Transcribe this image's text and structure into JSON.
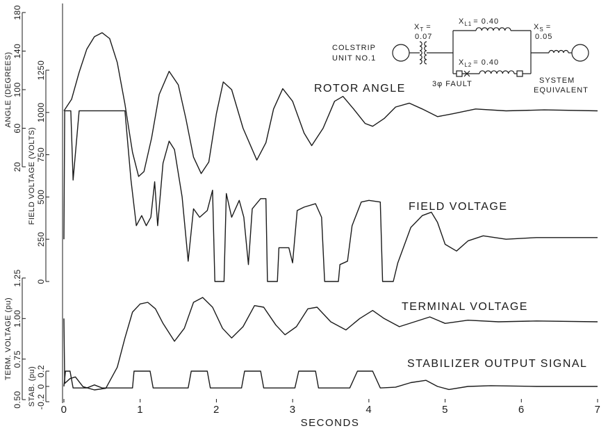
{
  "chart_data": [
    {
      "type": "line",
      "annotation": "ROTOR ANGLE",
      "ylabel": "ANGLE (DEGREES)",
      "color": "#1a1a1a",
      "ylim": [
        20,
        180
      ],
      "yticks": [
        20,
        60,
        100,
        140,
        180
      ],
      "x": [
        0,
        0.1,
        0.2,
        0.3,
        0.4,
        0.5,
        0.6,
        0.7,
        0.8,
        0.9,
        0.98,
        1.05,
        1.15,
        1.25,
        1.38,
        1.5,
        1.6,
        1.7,
        1.8,
        1.9,
        2.0,
        2.09,
        2.2,
        2.35,
        2.53,
        2.65,
        2.75,
        2.87,
        3.0,
        3.15,
        3.25,
        3.4,
        3.55,
        3.66,
        3.8,
        3.95,
        4.05,
        4.2,
        4.35,
        4.53,
        4.7,
        4.9,
        5.1,
        5.4,
        5.8,
        6.3,
        7
      ],
      "values": [
        78,
        90,
        118,
        142,
        155,
        159,
        153,
        128,
        85,
        35,
        10,
        15,
        50,
        95,
        119,
        105,
        70,
        30,
        13,
        25,
        75,
        108,
        100,
        60,
        27,
        45,
        80,
        101,
        88,
        55,
        42,
        60,
        88,
        93,
        80,
        65,
        62,
        70,
        82,
        86,
        80,
        72,
        75,
        80,
        78,
        79,
        78
      ]
    },
    {
      "type": "line",
      "annotation": "FIELD VOLTAGE",
      "ylabel": "FIELD VOLTAGE (VOLTS)",
      "color": "#1a1a1a",
      "ylim": [
        0,
        1250
      ],
      "yticks": [
        0,
        250,
        500,
        750,
        1000,
        1250
      ],
      "x": [
        0,
        0.01,
        0.09,
        0.12,
        0.2,
        0.8,
        0.88,
        0.95,
        1.02,
        1.08,
        1.14,
        1.19,
        1.23,
        1.3,
        1.38,
        1.45,
        1.55,
        1.63,
        1.7,
        1.78,
        1.88,
        1.95,
        1.98,
        2.1,
        2.13,
        2.2,
        2.3,
        2.36,
        2.42,
        2.47,
        2.58,
        2.65,
        2.67,
        2.8,
        2.82,
        2.95,
        3.0,
        3.06,
        3.15,
        3.3,
        3.38,
        3.42,
        3.6,
        3.62,
        3.72,
        3.78,
        3.9,
        4.0,
        4.15,
        4.18,
        4.32,
        4.38,
        4.55,
        4.7,
        4.82,
        4.9,
        5.0,
        5.15,
        5.3,
        5.5,
        5.8,
        6.2,
        7
      ],
      "values": [
        250,
        1010,
        1010,
        600,
        1010,
        1010,
        600,
        330,
        390,
        330,
        380,
        590,
        330,
        700,
        830,
        780,
        500,
        120,
        430,
        380,
        420,
        540,
        0,
        0,
        520,
        380,
        480,
        380,
        100,
        430,
        490,
        490,
        0,
        0,
        200,
        200,
        110,
        420,
        440,
        460,
        380,
        0,
        0,
        100,
        120,
        330,
        470,
        480,
        470,
        0,
        0,
        110,
        320,
        390,
        410,
        350,
        220,
        180,
        240,
        270,
        250,
        260,
        260
      ]
    },
    {
      "type": "line",
      "annotation": "TERMINAL VOLTAGE",
      "ylabel": "TERM. VOLTAGE (pu)",
      "color": "#1a1a1a",
      "ylim": [
        0.5,
        1.25
      ],
      "yticks": [
        {
          "value": 0.5,
          "label": "0.50"
        },
        0.75,
        {
          "value": 1,
          "label": "1.00"
        },
        1.25
      ],
      "x": [
        0,
        0.01,
        0.08,
        0.15,
        0.25,
        0.4,
        0.55,
        0.7,
        0.8,
        0.9,
        1.0,
        1.1,
        1.2,
        1.3,
        1.45,
        1.58,
        1.7,
        1.82,
        1.95,
        2.08,
        2.2,
        2.35,
        2.5,
        2.62,
        2.78,
        2.9,
        3.05,
        3.2,
        3.32,
        3.5,
        3.7,
        3.88,
        4.05,
        4.2,
        4.4,
        4.6,
        4.8,
        5.0,
        5.3,
        5.7,
        6.2,
        7
      ],
      "values": [
        1.0,
        0.6,
        0.63,
        0.64,
        0.58,
        0.56,
        0.57,
        0.7,
        0.88,
        1.04,
        1.09,
        1.1,
        1.06,
        0.97,
        0.86,
        0.94,
        1.1,
        1.13,
        1.07,
        0.94,
        0.88,
        0.95,
        1.08,
        1.07,
        0.96,
        0.9,
        0.95,
        1.06,
        1.07,
        0.98,
        0.93,
        1.0,
        1.05,
        1.0,
        0.95,
        0.98,
        1.01,
        0.97,
        0.99,
        0.98,
        0.985,
        0.98
      ]
    },
    {
      "type": "line",
      "annotation": "STABILIZER OUTPUT SIGNAL",
      "ylabel": "STAB. (pu)",
      "color": "#1a1a1a",
      "ylim": [
        -0.2,
        0.2
      ],
      "yticks": [
        -0.2,
        0,
        0.2
      ],
      "xlabel": "SECONDS",
      "xlim": [
        0,
        7
      ],
      "xticks": [
        0,
        1,
        2,
        3,
        4,
        5,
        6,
        7
      ],
      "x": [
        0,
        0.02,
        0.08,
        0.12,
        0.3,
        0.4,
        0.5,
        0.9,
        0.92,
        1.13,
        1.17,
        1.63,
        1.67,
        1.88,
        1.92,
        2.33,
        2.37,
        2.58,
        2.62,
        3.03,
        3.08,
        3.3,
        3.34,
        3.75,
        3.85,
        4.05,
        4.15,
        4.35,
        4.55,
        4.75,
        4.9,
        5.05,
        5.3,
        5.6,
        6.2,
        7
      ],
      "values": [
        0,
        0.2,
        0.2,
        -0.02,
        -0.02,
        0.02,
        -0.02,
        -0.02,
        0.2,
        0.2,
        -0.02,
        -0.02,
        0.2,
        0.2,
        -0.02,
        -0.02,
        0.2,
        0.2,
        -0.02,
        -0.02,
        0.2,
        0.2,
        -0.02,
        -0.02,
        0.2,
        0.2,
        -0.02,
        -0.01,
        0.05,
        0.08,
        0,
        -0.04,
        0,
        0.01,
        0,
        0
      ]
    }
  ],
  "inset": {
    "generator": [
      "COLSTRIP",
      "UNIT NO.1"
    ],
    "xt": {
      "symbol": "X",
      "sub": "T",
      "eq": "=",
      "value": "0.07"
    },
    "xl1": {
      "symbol": "X",
      "sub": "L1",
      "value": "= 0.40"
    },
    "xl2": {
      "symbol": "X",
      "sub": "L2",
      "value": "= 0.40"
    },
    "xs": {
      "symbol": "X",
      "sub": "S",
      "eq": "=",
      "value": "0.05"
    },
    "fault": "3φ FAULT",
    "system": [
      "SYSTEM",
      "EQUIVALENT"
    ]
  }
}
